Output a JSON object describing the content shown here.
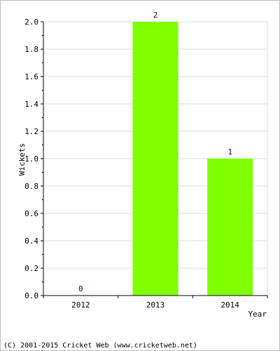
{
  "chart_data": {
    "type": "bar",
    "categories": [
      "2012",
      "2013",
      "2014"
    ],
    "values": [
      0,
      2,
      1
    ],
    "data_labels": [
      "0",
      "2",
      "1"
    ],
    "xlabel": "Year",
    "ylabel": "Wickets",
    "ylim": [
      0,
      2.0
    ],
    "yticks": [
      "0.0",
      "0.2",
      "0.4",
      "0.6",
      "0.8",
      "1.0",
      "1.2",
      "1.4",
      "1.6",
      "1.8",
      "2.0"
    ],
    "grid": true,
    "bar_color": "#80ff00",
    "label_color": "#000080",
    "grid_color": "#dddddd"
  },
  "footer": {
    "copyright": "(C) 2001-2015 Cricket Web (www.cricketweb.net)"
  }
}
